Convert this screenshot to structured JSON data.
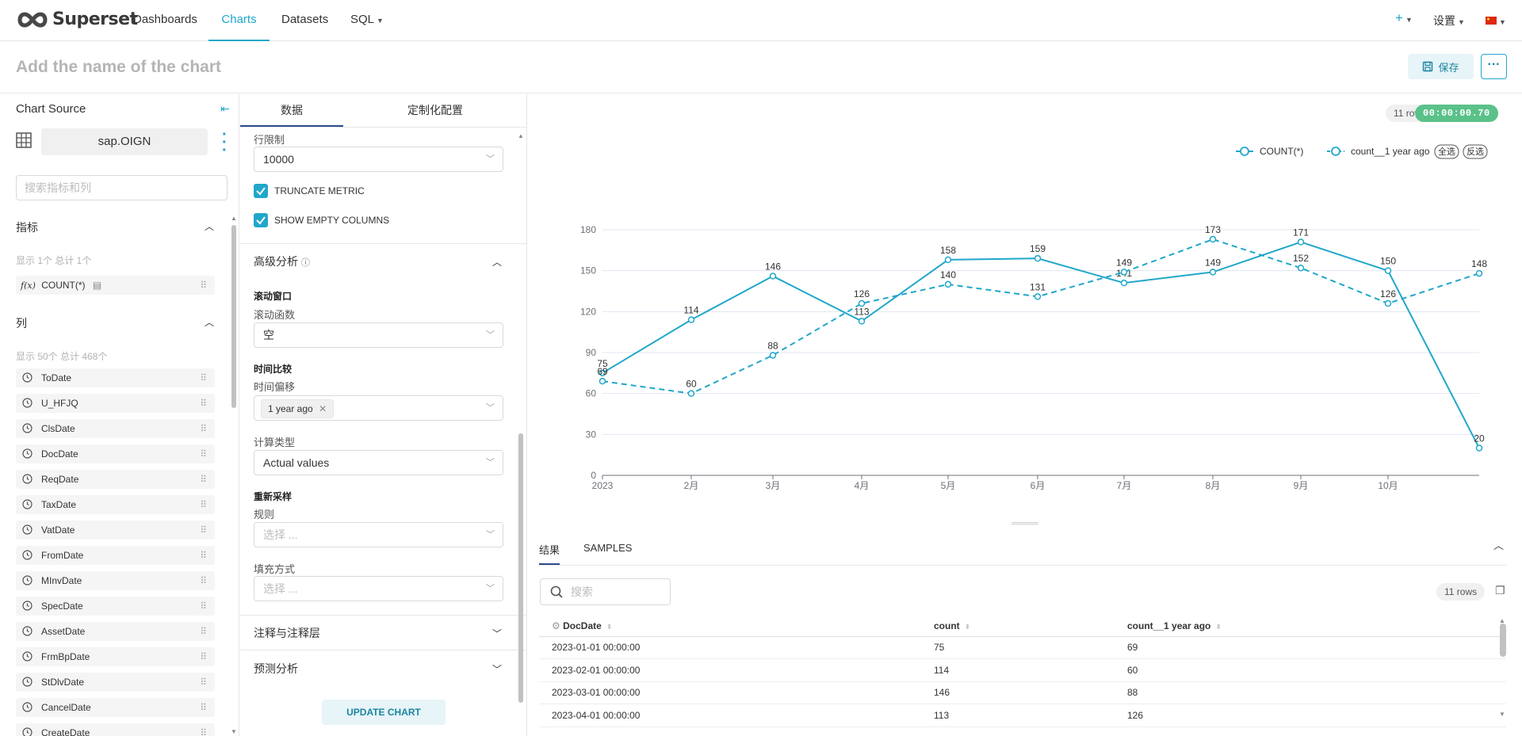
{
  "nav": {
    "brand": "Superset",
    "items": [
      {
        "label": "Dashboards"
      },
      {
        "label": "Charts"
      },
      {
        "label": "Datasets"
      },
      {
        "label": "SQL"
      }
    ],
    "plus_label": "+",
    "settings_label": "设置",
    "accent_color": "#20a7c9"
  },
  "header": {
    "chart_title_placeholder": "Add the name of the chart",
    "save_label": "保存",
    "more_label": "···"
  },
  "left": {
    "chart_source_label": "Chart Source",
    "dataset_name": "sap.OIGN",
    "search_placeholder": "搜索指标和列",
    "metrics_heading": "指标",
    "metrics_count_text": "显示 1个 总计 1个",
    "metrics": [
      {
        "label": "COUNT(*)",
        "prefix": "f(x)"
      }
    ],
    "columns_heading": "列",
    "columns_count_text": "显示 50个 总计 468个",
    "columns": [
      "ToDate",
      "U_HFJQ",
      "ClsDate",
      "DocDate",
      "ReqDate",
      "TaxDate",
      "VatDate",
      "FromDate",
      "MInvDate",
      "SpecDate",
      "AssetDate",
      "FrmBpDate",
      "StDlvDate",
      "CancelDate",
      "CreateDate"
    ]
  },
  "mid": {
    "tabs": [
      {
        "label": "数据"
      },
      {
        "label": "定制化配置"
      }
    ],
    "row_limit_label": "行限制",
    "row_limit_value": "10000",
    "truncate_metric_label": "TRUNCATE METRIC",
    "show_empty_columns_label": "SHOW EMPTY COLUMNS",
    "advanced_heading": "高级分析",
    "rolling_heading": "滚动窗口",
    "rolling_func_label": "滚动函数",
    "rolling_func_value": "空",
    "time_compare_heading": "时间比较",
    "time_shift_label": "时间偏移",
    "time_shift_tag": "1 year ago",
    "calc_type_label": "计算类型",
    "calc_type_value": "Actual values",
    "resample_heading": "重新采样",
    "rule_label": "规则",
    "rule_placeholder": "选择 ...",
    "fill_label": "填充方式",
    "fill_placeholder": "选择 ...",
    "annotations_heading": "注释与注释层",
    "forecast_heading": "预测分析",
    "update_label": "UPDATE CHART"
  },
  "chart_meta": {
    "rows_badge": "11 rows",
    "timer_badge": "00:00:00.70",
    "select_all": "全选",
    "invert": "反选"
  },
  "chart_data": {
    "type": "line",
    "categories": [
      "2023",
      "2月",
      "3月",
      "4月",
      "5月",
      "6月",
      "7月",
      "8月",
      "9月",
      "10月",
      ""
    ],
    "series": [
      {
        "name": "COUNT(*)",
        "values": [
          75,
          114,
          146,
          113,
          158,
          159,
          141,
          149,
          171,
          150,
          20
        ],
        "style": "solid",
        "color": "#20a7c9"
      },
      {
        "name": "count__1 year ago",
        "values": [
          69,
          60,
          88,
          126,
          140,
          131,
          149,
          173,
          152,
          126,
          148
        ],
        "style": "dashed",
        "color": "#20a7c9"
      }
    ],
    "yticks": [
      0,
      30,
      60,
      90,
      120,
      150,
      180
    ],
    "ylim": [
      0,
      180
    ],
    "grid": true,
    "legend_position": "top-right"
  },
  "results": {
    "tabs": [
      {
        "label": "结果"
      },
      {
        "label": "SAMPLES"
      }
    ],
    "search_placeholder": "搜索",
    "rows_badge": "11 rows",
    "columns": [
      "DocDate",
      "count",
      "count__1 year ago"
    ],
    "rows": [
      [
        "2023-01-01 00:00:00",
        "75",
        "69"
      ],
      [
        "2023-02-01 00:00:00",
        "114",
        "60"
      ],
      [
        "2023-03-01 00:00:00",
        "146",
        "88"
      ],
      [
        "2023-04-01 00:00:00",
        "113",
        "126"
      ]
    ]
  }
}
